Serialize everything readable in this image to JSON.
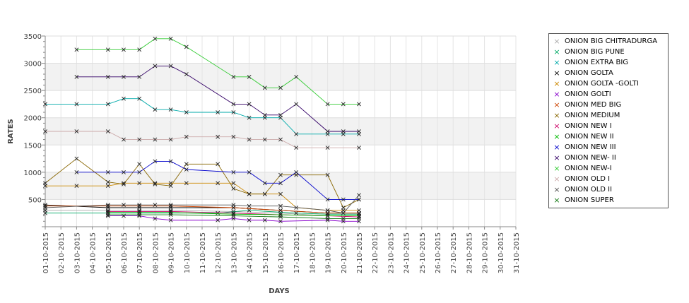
{
  "chart_data": {
    "type": "line",
    "title": "",
    "xlabel": "DAYS",
    "ylabel": "RATES",
    "ylim": [
      0,
      3500
    ],
    "yticks": [
      500,
      1000,
      1500,
      2000,
      2500,
      3000,
      3500
    ],
    "grid": true,
    "legend_position": "right",
    "categories": [
      "01-10-2015",
      "02-10-2015",
      "03-10-2015",
      "04-10-2015",
      "05-10-2015",
      "06-10-2015",
      "07-10-2015",
      "08-10-2015",
      "09-10-2015",
      "10-10-2015",
      "11-10-2015",
      "12-10-2015",
      "13-10-2015",
      "14-10-2015",
      "15-10-2015",
      "16-10-2015",
      "17-10-2015",
      "18-10-2015",
      "19-10-2015",
      "20-10-2015",
      "21-10-2015",
      "22-10-2015",
      "23-10-2015",
      "24-10-2015",
      "25-10-2015",
      "26-10-2015",
      "27-10-2015",
      "28-10-2015",
      "29-10-2015",
      "30-10-2015",
      "31-10-2015"
    ],
    "series": [
      {
        "name": "ONION BIG CHITRADURGA",
        "color": "#aaaaaa",
        "points": [
          [
            "01-10-2015",
            300
          ],
          [
            "05-10-2015",
            300
          ],
          [
            "07-10-2015",
            300
          ],
          [
            "09-10-2015",
            300
          ],
          [
            "13-10-2015",
            280
          ],
          [
            "16-10-2015",
            250
          ],
          [
            "19-10-2015",
            200
          ],
          [
            "21-10-2015",
            200
          ]
        ]
      },
      {
        "name": "ONION BIG PUNE",
        "color": "#00aa66",
        "points": [
          [
            "01-10-2015",
            250
          ],
          [
            "05-10-2015",
            250
          ],
          [
            "07-10-2015",
            250
          ],
          [
            "09-10-2015",
            250
          ],
          [
            "12-10-2015",
            250
          ],
          [
            "14-10-2015",
            300
          ],
          [
            "17-10-2015",
            250
          ],
          [
            "19-10-2015",
            230
          ],
          [
            "21-10-2015",
            230
          ]
        ]
      },
      {
        "name": "ONION EXTRA BIG",
        "color": "#00aaaa",
        "points": [
          [
            "01-10-2015",
            2250
          ],
          [
            "03-10-2015",
            2250
          ],
          [
            "05-10-2015",
            2250
          ],
          [
            "06-10-2015",
            2350
          ],
          [
            "07-10-2015",
            2350
          ],
          [
            "08-10-2015",
            2150
          ],
          [
            "09-10-2015",
            2150
          ],
          [
            "10-10-2015",
            2100
          ],
          [
            "12-10-2015",
            2100
          ],
          [
            "13-10-2015",
            2100
          ],
          [
            "14-10-2015",
            2000
          ],
          [
            "15-10-2015",
            2000
          ],
          [
            "16-10-2015",
            2000
          ],
          [
            "17-10-2015",
            1700
          ],
          [
            "19-10-2015",
            1700
          ],
          [
            "20-10-2015",
            1700
          ],
          [
            "21-10-2015",
            1700
          ]
        ]
      },
      {
        "name": "ONION GOLTA",
        "color": "#000000",
        "points": [
          [
            "01-10-2015",
            400
          ],
          [
            "05-10-2015",
            350
          ],
          [
            "07-10-2015",
            350
          ],
          [
            "09-10-2015",
            350
          ],
          [
            "13-10-2015",
            350
          ],
          [
            "16-10-2015",
            300
          ],
          [
            "19-10-2015",
            250
          ],
          [
            "21-10-2015",
            250
          ]
        ]
      },
      {
        "name": "ONION GOLTA -GOLTI",
        "color": "#cc8800",
        "points": [
          [
            "01-10-2015",
            750
          ],
          [
            "03-10-2015",
            750
          ],
          [
            "05-10-2015",
            750
          ],
          [
            "06-10-2015",
            800
          ],
          [
            "07-10-2015",
            800
          ],
          [
            "08-10-2015",
            800
          ],
          [
            "09-10-2015",
            800
          ],
          [
            "10-10-2015",
            800
          ],
          [
            "12-10-2015",
            800
          ],
          [
            "13-10-2015",
            800
          ],
          [
            "14-10-2015",
            600
          ],
          [
            "15-10-2015",
            600
          ],
          [
            "16-10-2015",
            600
          ],
          [
            "17-10-2015",
            350
          ],
          [
            "19-10-2015",
            300
          ],
          [
            "20-10-2015",
            300
          ],
          [
            "21-10-2015",
            300
          ]
        ]
      },
      {
        "name": "ONION GOLTI",
        "color": "#8800cc",
        "points": [
          [
            "05-10-2015",
            200
          ],
          [
            "06-10-2015",
            200
          ],
          [
            "07-10-2015",
            200
          ],
          [
            "08-10-2015",
            150
          ],
          [
            "09-10-2015",
            120
          ],
          [
            "12-10-2015",
            120
          ],
          [
            "13-10-2015",
            150
          ],
          [
            "14-10-2015",
            120
          ],
          [
            "15-10-2015",
            120
          ],
          [
            "16-10-2015",
            100
          ],
          [
            "19-10-2015",
            120
          ],
          [
            "20-10-2015",
            100
          ],
          [
            "21-10-2015",
            100
          ]
        ]
      },
      {
        "name": "ONION MED BIG",
        "color": "#cc4400",
        "points": [
          [
            "01-10-2015",
            380
          ],
          [
            "05-10-2015",
            380
          ],
          [
            "07-10-2015",
            380
          ],
          [
            "09-10-2015",
            380
          ],
          [
            "13-10-2015",
            350
          ],
          [
            "16-10-2015",
            300
          ],
          [
            "19-10-2015",
            250
          ],
          [
            "21-10-2015",
            250
          ]
        ]
      },
      {
        "name": "ONION MEDIUM",
        "color": "#886600",
        "points": [
          [
            "01-10-2015",
            800
          ],
          [
            "03-10-2015",
            1250
          ],
          [
            "05-10-2015",
            820
          ],
          [
            "06-10-2015",
            780
          ],
          [
            "07-10-2015",
            1150
          ],
          [
            "08-10-2015",
            780
          ],
          [
            "09-10-2015",
            750
          ],
          [
            "10-10-2015",
            1150
          ],
          [
            "12-10-2015",
            1150
          ],
          [
            "13-10-2015",
            700
          ],
          [
            "14-10-2015",
            600
          ],
          [
            "15-10-2015",
            600
          ],
          [
            "16-10-2015",
            950
          ],
          [
            "17-10-2015",
            950
          ],
          [
            "19-10-2015",
            950
          ],
          [
            "20-10-2015",
            350
          ],
          [
            "21-10-2015",
            500
          ]
        ]
      },
      {
        "name": "ONION NEW I",
        "color": "#cc0066",
        "points": [
          [
            "05-10-2015",
            280
          ],
          [
            "07-10-2015",
            280
          ],
          [
            "09-10-2015",
            280
          ],
          [
            "13-10-2015",
            250
          ],
          [
            "16-10-2015",
            220
          ],
          [
            "19-10-2015",
            200
          ],
          [
            "21-10-2015",
            180
          ]
        ]
      },
      {
        "name": "ONION NEW II",
        "color": "#00bb00",
        "points": [
          [
            "05-10-2015",
            260
          ],
          [
            "07-10-2015",
            260
          ],
          [
            "09-10-2015",
            260
          ],
          [
            "13-10-2015",
            230
          ],
          [
            "16-10-2015",
            220
          ],
          [
            "19-10-2015",
            200
          ],
          [
            "21-10-2015",
            200
          ]
        ]
      },
      {
        "name": "ONION NEW III",
        "color": "#0000cc",
        "points": [
          [
            "03-10-2015",
            1000
          ],
          [
            "05-10-2015",
            1000
          ],
          [
            "06-10-2015",
            1000
          ],
          [
            "07-10-2015",
            1000
          ],
          [
            "08-10-2015",
            1200
          ],
          [
            "09-10-2015",
            1200
          ],
          [
            "10-10-2015",
            1050
          ],
          [
            "13-10-2015",
            1000
          ],
          [
            "14-10-2015",
            1000
          ],
          [
            "15-10-2015",
            800
          ],
          [
            "16-10-2015",
            800
          ],
          [
            "17-10-2015",
            1000
          ],
          [
            "19-10-2015",
            500
          ],
          [
            "20-10-2015",
            500
          ],
          [
            "21-10-2015",
            500
          ]
        ]
      },
      {
        "name": "ONION NEW- II",
        "color": "#330066",
        "points": [
          [
            "03-10-2015",
            2750
          ],
          [
            "05-10-2015",
            2750
          ],
          [
            "06-10-2015",
            2750
          ],
          [
            "07-10-2015",
            2750
          ],
          [
            "08-10-2015",
            2950
          ],
          [
            "09-10-2015",
            2950
          ],
          [
            "10-10-2015",
            2800
          ],
          [
            "13-10-2015",
            2250
          ],
          [
            "14-10-2015",
            2250
          ],
          [
            "15-10-2015",
            2050
          ],
          [
            "16-10-2015",
            2050
          ],
          [
            "17-10-2015",
            2250
          ],
          [
            "19-10-2015",
            1750
          ],
          [
            "20-10-2015",
            1750
          ],
          [
            "21-10-2015",
            1750
          ]
        ]
      },
      {
        "name": "ONION NEW-I",
        "color": "#33cc33",
        "points": [
          [
            "03-10-2015",
            3250
          ],
          [
            "05-10-2015",
            3250
          ],
          [
            "06-10-2015",
            3250
          ],
          [
            "07-10-2015",
            3250
          ],
          [
            "08-10-2015",
            3450
          ],
          [
            "09-10-2015",
            3450
          ],
          [
            "10-10-2015",
            3300
          ],
          [
            "13-10-2015",
            2750
          ],
          [
            "14-10-2015",
            2750
          ],
          [
            "15-10-2015",
            2550
          ],
          [
            "16-10-2015",
            2550
          ],
          [
            "17-10-2015",
            2750
          ],
          [
            "19-10-2015",
            2250
          ],
          [
            "20-10-2015",
            2250
          ],
          [
            "21-10-2015",
            2250
          ]
        ]
      },
      {
        "name": "ONION OLD I",
        "color": "#ccaaaa",
        "points": [
          [
            "01-10-2015",
            1750
          ],
          [
            "03-10-2015",
            1750
          ],
          [
            "05-10-2015",
            1750
          ],
          [
            "06-10-2015",
            1600
          ],
          [
            "07-10-2015",
            1600
          ],
          [
            "08-10-2015",
            1600
          ],
          [
            "09-10-2015",
            1600
          ],
          [
            "10-10-2015",
            1650
          ],
          [
            "12-10-2015",
            1650
          ],
          [
            "13-10-2015",
            1650
          ],
          [
            "14-10-2015",
            1600
          ],
          [
            "15-10-2015",
            1600
          ],
          [
            "16-10-2015",
            1600
          ],
          [
            "17-10-2015",
            1450
          ],
          [
            "19-10-2015",
            1450
          ],
          [
            "21-10-2015",
            1450
          ]
        ]
      },
      {
        "name": "ONION OLD II",
        "color": "#555555",
        "points": [
          [
            "01-10-2015",
            350
          ],
          [
            "05-10-2015",
            400
          ],
          [
            "06-10-2015",
            400
          ],
          [
            "07-10-2015",
            400
          ],
          [
            "08-10-2015",
            400
          ],
          [
            "09-10-2015",
            400
          ],
          [
            "13-10-2015",
            400
          ],
          [
            "14-10-2015",
            380
          ],
          [
            "16-10-2015",
            380
          ],
          [
            "19-10-2015",
            300
          ],
          [
            "20-10-2015",
            250
          ],
          [
            "21-10-2015",
            580
          ]
        ]
      },
      {
        "name": "ONION SUPER",
        "color": "#117711",
        "points": [
          [
            "05-10-2015",
            220
          ],
          [
            "07-10-2015",
            220
          ],
          [
            "09-10-2015",
            220
          ],
          [
            "13-10-2015",
            200
          ],
          [
            "16-10-2015",
            180
          ],
          [
            "19-10-2015",
            150
          ],
          [
            "20-10-2015",
            150
          ],
          [
            "21-10-2015",
            150
          ]
        ]
      }
    ]
  }
}
